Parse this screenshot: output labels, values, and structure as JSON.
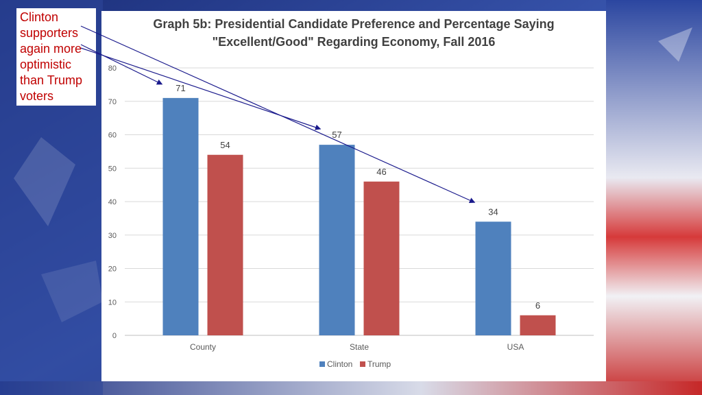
{
  "annotation": {
    "text": "Clinton\nsupporters\nagain more\noptimistic\nthan Trump\nvoters"
  },
  "colors": {
    "clinton": "#4f81bd",
    "trump": "#c0504d",
    "annotation_text": "#c00000",
    "arrow": "#1a1a8c"
  },
  "chart_data": {
    "type": "bar",
    "title": "Graph 5b: Presidential Candidate Preference and Percentage Saying\n\"Excellent/Good\" Regarding Economy, Fall 2016",
    "categories": [
      "County",
      "State",
      "USA"
    ],
    "series": [
      {
        "name": "Clinton",
        "values": [
          71,
          57,
          34
        ]
      },
      {
        "name": "Trump",
        "values": [
          54,
          46,
          6
        ]
      }
    ],
    "ylim": [
      0,
      80
    ],
    "yticks": [
      0,
      10,
      20,
      30,
      40,
      50,
      60,
      70,
      80
    ],
    "xlabel": "",
    "ylabel": "",
    "grid": true,
    "legend": "bottom"
  }
}
